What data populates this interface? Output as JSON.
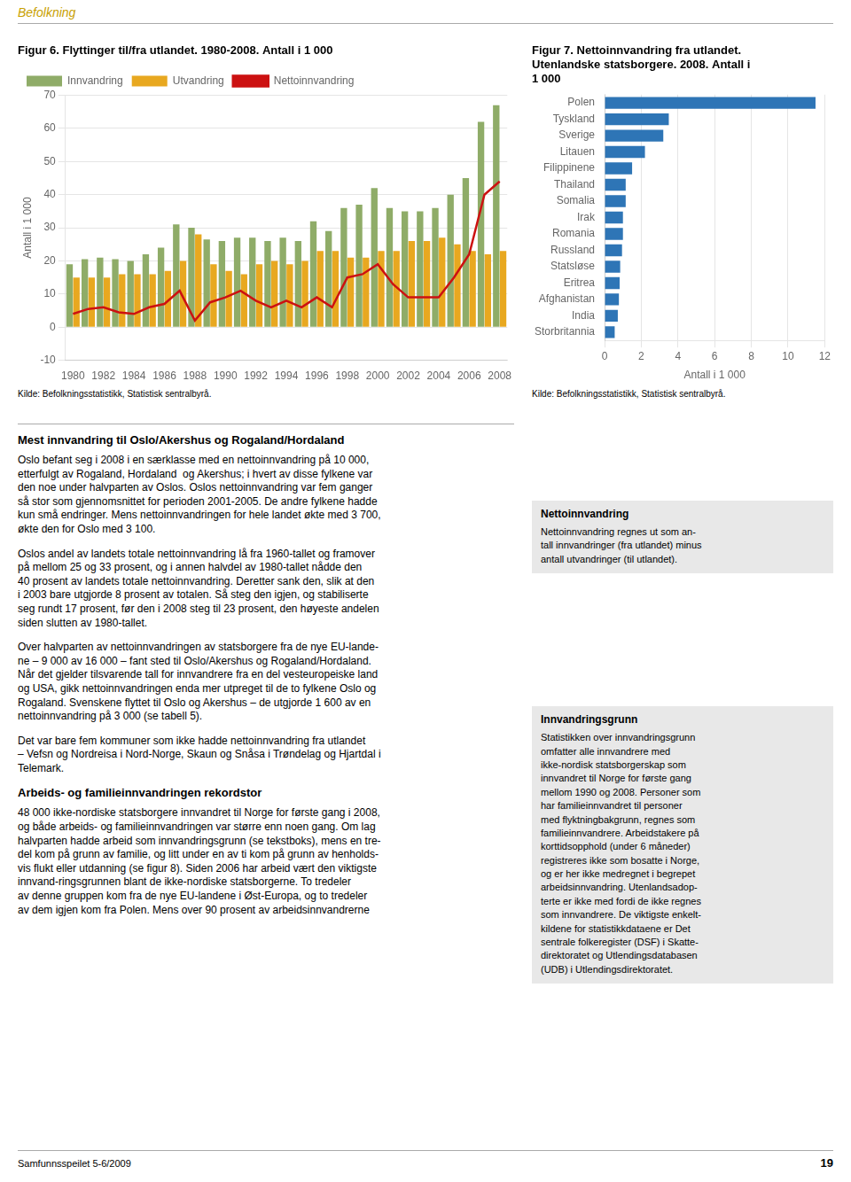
{
  "chart_data": [
    {
      "type": "bar",
      "title": "Figur 6. Flyttinger til/fra utlandet. 1980-2008. Antall i 1 000",
      "y_label": "Antall i 1 000",
      "categories": [
        "1980",
        null,
        "1982",
        null,
        "1984",
        null,
        "1986",
        null,
        "1988",
        null,
        "1990",
        null,
        "1992",
        null,
        "1994",
        null,
        "1996",
        null,
        "1998",
        null,
        "2000",
        null,
        "2002",
        null,
        "2004",
        null,
        "2006",
        null,
        "2008"
      ],
      "series": [
        {
          "name": "Innvandring",
          "type": "bar",
          "color": "#8fac68",
          "values": [
            19,
            20.5,
            21,
            20.5,
            20,
            22,
            24,
            31,
            30,
            26.5,
            26,
            27,
            27,
            26,
            27,
            26,
            32,
            29,
            36,
            37,
            42,
            36,
            35,
            35,
            36,
            40,
            45,
            62,
            67
          ]
        },
        {
          "name": "Utvandring",
          "type": "bar",
          "color": "#e8a820",
          "values": [
            15,
            15,
            15,
            16,
            16,
            16,
            17,
            20,
            28,
            19,
            17,
            16,
            19,
            20,
            19,
            20,
            23,
            23,
            21,
            21,
            23,
            23,
            26,
            26,
            27,
            25,
            23,
            22,
            23
          ]
        },
        {
          "name": "Nettoinnvandring",
          "type": "line",
          "color": "#cc1111",
          "values": [
            4,
            5.5,
            6,
            4.5,
            4,
            6,
            7,
            11,
            2,
            7.5,
            9,
            11,
            8,
            6,
            8,
            6,
            9,
            6,
            15,
            16,
            19,
            13,
            9,
            9,
            9,
            15,
            22,
            40,
            44
          ]
        }
      ],
      "ylim": [
        -10,
        70
      ],
      "yticks": [
        -10,
        0,
        10,
        20,
        30,
        40,
        50,
        60,
        70
      ],
      "grid": "y",
      "legend": "upper left",
      "annotations": [
        "Kilde: Befolkningsstatistikk, Statistisk sentralbyrå."
      ]
    },
    {
      "type": "bar",
      "orientation": "horizontal",
      "title": "Figur 7. Nettoinnvandring fra utlandet.\nUtenlandske statsborgere. 2008. Antall i\n1 000",
      "x_label": "Antall i 1 000",
      "categories": [
        "Polen",
        "Tyskland",
        "Sverige",
        "Litauen",
        "Filippinene",
        "Thailand",
        "Somalia",
        "Irak",
        "Romania",
        "Russland",
        "Statsløse",
        "Eritrea",
        "Afghanistan",
        "India",
        "Storbritannia"
      ],
      "values": [
        11.5,
        3.5,
        3.2,
        2.2,
        1.5,
        1.15,
        1.15,
        1.0,
        1.0,
        0.95,
        0.85,
        0.82,
        0.78,
        0.72,
        0.55
      ],
      "color": "#2e75b6",
      "xlim": [
        0,
        12
      ],
      "xticks": [
        0,
        2,
        4,
        6,
        8,
        10,
        12
      ],
      "grid": "x",
      "annotations": [
        "Kilde: Befolkningsstatistikk, Statistisk sentralbyrå."
      ]
    }
  ],
  "annotations": [
    "Befolkning",
    "Mest innvandring til Oslo/Akershus og Rogaland/Hordaland",
    "Oslo befant seg i 2008 i en særklasse med en nettoinnvandring på 10 000,\netterfulgt av Rogaland, Hordaland  og Akershus; i hvert av disse fylkene var\nden noe under halvparten av Oslos. Oslos nettoinnvandring var fem ganger\nså stor som gjennomsnittet for perioden 2001-2005. De andre fylkene hadde\nkun små endringer. Mens nettoinnvandringen for hele landet økte med 3 700,\nøkte den for Oslo med 3 100.",
    "Oslos andel av landets totale nettoinnvandring lå fra 1960-tallet og framover\npå mellom 25 og 33 prosent, og i annen halvdel av 1980-tallet nådde den\n40 prosent av landets totale nettoinnvandring. Deretter sank den, slik at den\ni 2003 bare utgjorde 8 prosent av totalen. Så steg den igjen, og stabiliserte\nseg rundt 17 prosent, før den i 2008 steg til 23 prosent, den høyeste andelen\nsiden slutten av 1980-tallet.",
    "Over halvparten av nettoinnvandringen av statsborgere fra de nye EU-lande-\nne – 9 000 av 16 000 – fant sted til Oslo/Akershus og Rogaland/Hordaland.\nNår det gjelder tilsvarende tall for innvandrere fra en del vesteuropeiske land\nog USA, gikk nettoinnvandringen enda mer utpreget til de to fylkene Oslo og\nRogaland. Svenskene flyttet til Oslo og Akershus – de utgjorde 1 600 av en\nnettoinnvandring på 3 000 (se tabell 5).",
    "Det var bare fem kommuner som ikke hadde nettoinnvandring fra utlandet\n– Vefsn og Nordreisa i Nord-Norge, Skaun og Snåsa i Trøndelag og Hjartdal i\nTelemark.",
    "Arbeids- og familieinnvandringen rekordstor",
    "48 000 ikke-nordiske statsborgere innvandret til Norge for første gang i 2008,\nog både arbeids- og familieinnvandringen var større enn noen gang. Om lag\nhalvparten hadde arbeid som innvandringsgrunn (se tekstboks), mens en tre-\ndel kom på grunn av familie, og litt under en av ti kom på grunn av henholds-\nvis flukt eller utdanning (se figur 8). Siden 2006 har arbeid vært den viktigste\ninnvand-ringsgrunnen blant de ikke-nordiske statsborgerne. To tredeler\nav denne gruppen kom fra de nye EU-landene i Øst-Europa, og to tredeler\nav dem igjen kom fra Polen. Mens over 90 prosent av arbeidsinnvandrerne",
    "Nettoinnvandring",
    "Nettoinnvandring regnes ut som an-\ntall innvandringer (fra utlandet) minus\nantall utvandringer (til utlandet).",
    "Innvandringsgrunn",
    "Statistikken over innvandringsgrunn\nomfatter alle innvandrere med\nikke-nordisk statsborgerskap som\ninnvandret til Norge for første gang\nmellom 1990 og 2008. Personer som\nhar familieinnvandret til personer\nmed flyktningbakgrunn, regnes som\nfamilieinnvandrere. Arbeidstakere på\nkorttidsopphold (under 6 måneder)\nregistreres ikke som bosatte i Norge,\nog er her ikke medregnet i begrepet\narbeidsinnvandring. Utenlandsadop-\nterte er ikke med fordi de ikke regnes\nsom innvandrere. De viktigste enkelt-\nkildene for statistikkdataene er Det\nsentrale folkeregister (DSF) i Skatte-\ndirektoratet og Utlendingsdatabasen\n(UDB) i Utlendingsdirektoratet.",
    "Samfunnsspeilet 5-6/2009",
    "19"
  ]
}
